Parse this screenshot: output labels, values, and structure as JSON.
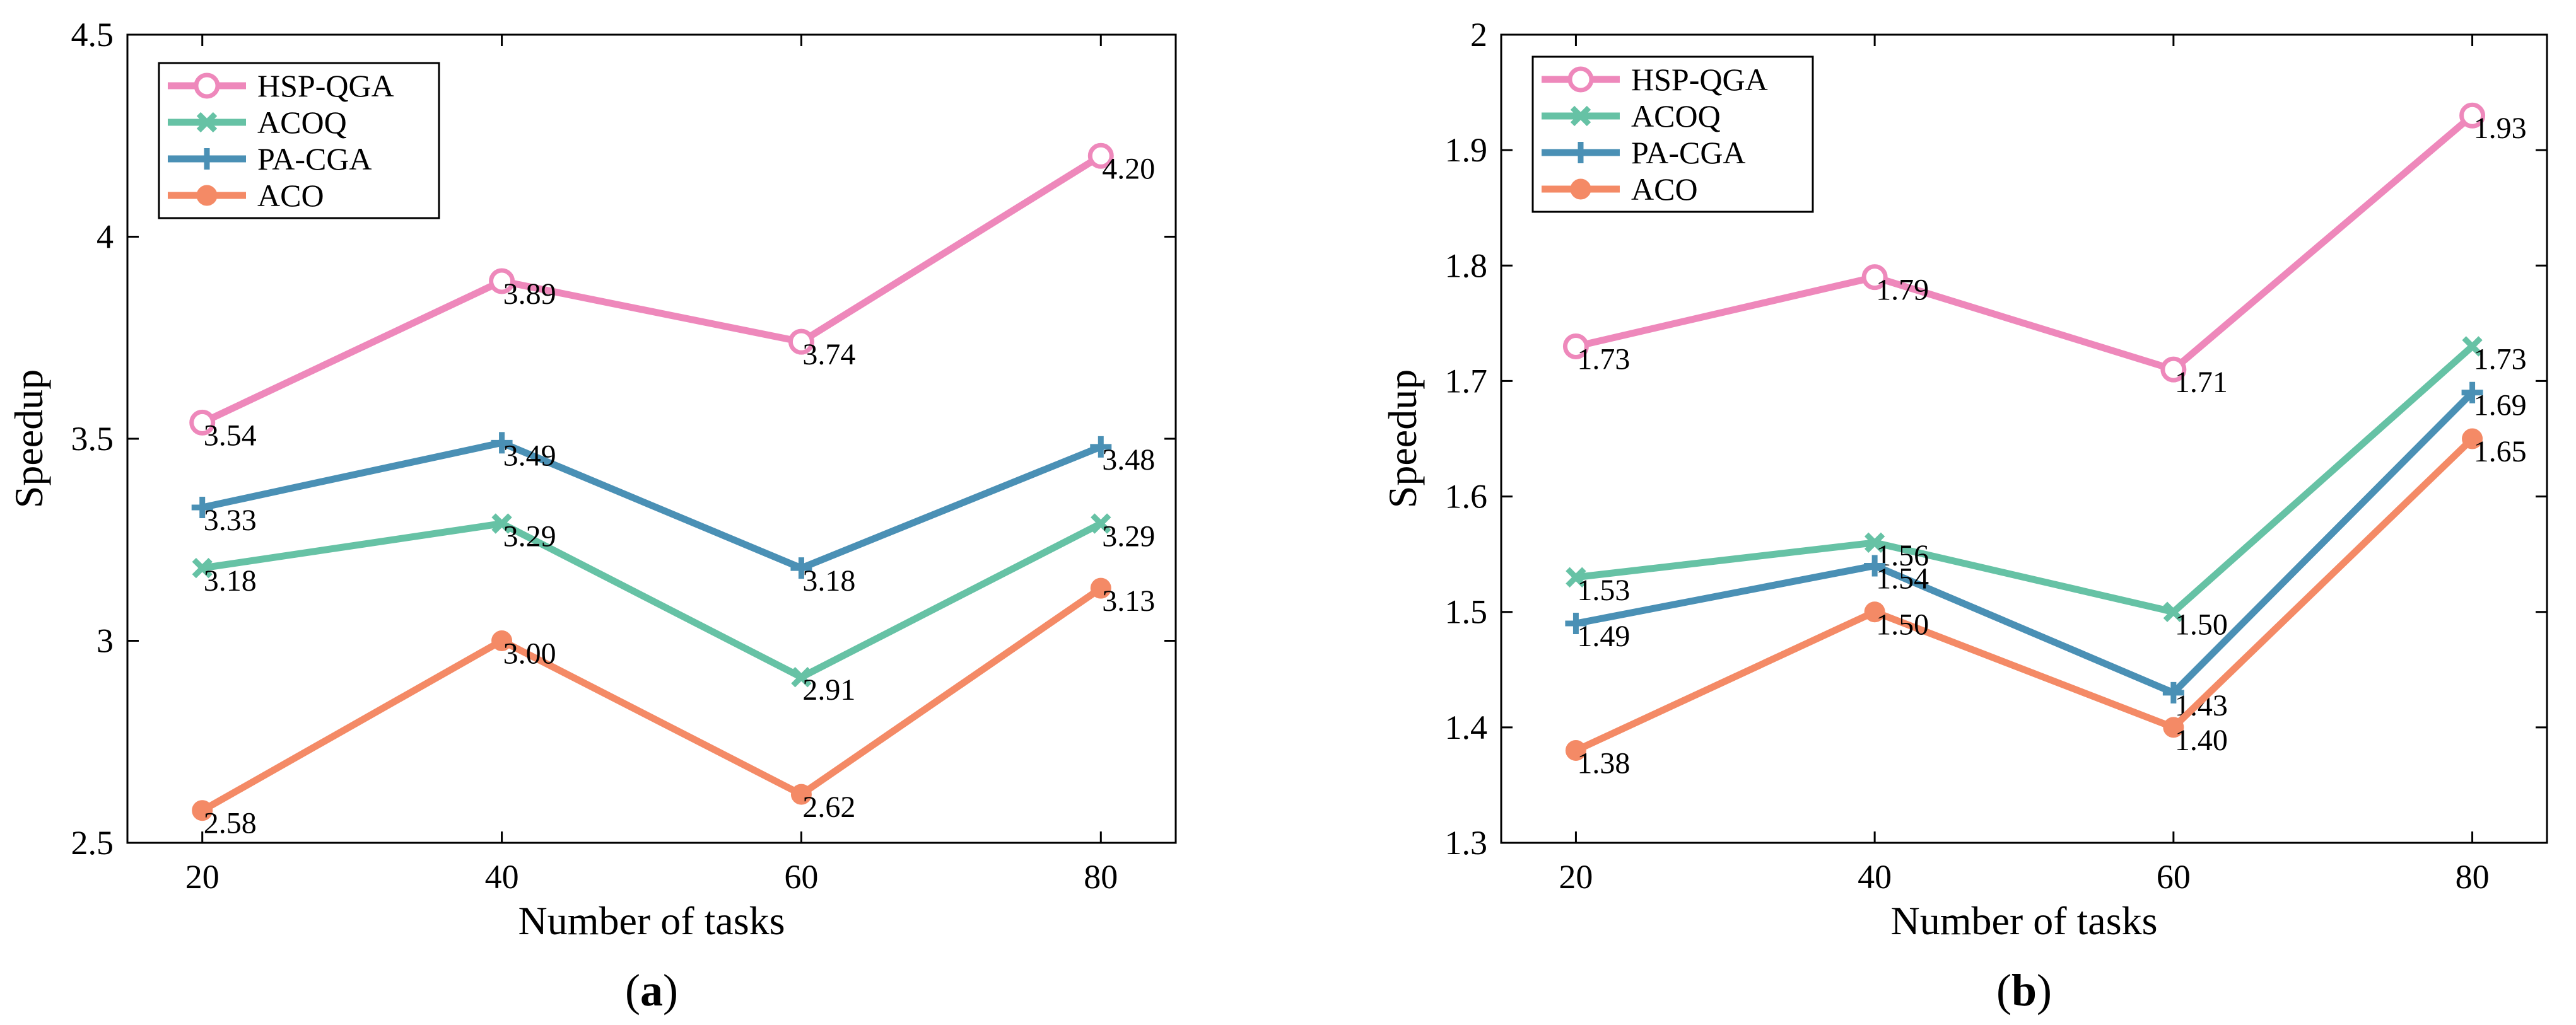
{
  "chart_data": [
    {
      "type": "line",
      "panel_label_open": "(",
      "panel_label": "a",
      "panel_label_close": ")",
      "x": [
        20,
        40,
        60,
        80
      ],
      "xlabel": "Number of tasks",
      "ylabel": "Speedup",
      "xlim": [
        15,
        85
      ],
      "ylim": [
        2.5,
        4.5
      ],
      "xticks": [
        "20",
        "40",
        "60",
        "80"
      ],
      "yticks": [
        "2.5",
        "3",
        "3.5",
        "4",
        "4.5"
      ],
      "grid": false,
      "legend": "top-left",
      "series": [
        {
          "name": "HSP-QGA",
          "values": [
            3.54,
            3.89,
            3.74,
            4.2
          ],
          "labels": [
            "3.54",
            "3.89",
            "3.74",
            "4.20"
          ],
          "color": "#EE88BB",
          "marker": "circle-open"
        },
        {
          "name": "ACOQ",
          "values": [
            3.18,
            3.29,
            2.91,
            3.29
          ],
          "labels": [
            "3.18",
            "3.29",
            "2.91",
            "3.29"
          ],
          "color": "#66C2A5",
          "marker": "x"
        },
        {
          "name": "PA-CGA",
          "values": [
            3.33,
            3.49,
            3.18,
            3.48
          ],
          "labels": [
            "3.33",
            "3.49",
            "3.18",
            "3.48"
          ],
          "color": "#4A90B5",
          "marker": "plus"
        },
        {
          "name": "ACO",
          "values": [
            2.58,
            3.0,
            2.62,
            3.13
          ],
          "labels": [
            "2.58",
            "3.00",
            "2.62",
            "3.13"
          ],
          "color": "#F48A66",
          "marker": "circle-filled"
        }
      ]
    },
    {
      "type": "line",
      "panel_label_open": "(",
      "panel_label": "b",
      "panel_label_close": ")",
      "x": [
        20,
        40,
        60,
        80
      ],
      "xlabel": "Number of tasks",
      "ylabel": "Speedup",
      "xlim": [
        15,
        85
      ],
      "ylim": [
        1.3,
        2.0
      ],
      "xticks": [
        "20",
        "40",
        "60",
        "80"
      ],
      "yticks": [
        "1.3",
        "1.4",
        "1.5",
        "1.6",
        "1.7",
        "1.8",
        "1.9",
        "2"
      ],
      "grid": false,
      "legend": "top-left",
      "series": [
        {
          "name": "HSP-QGA",
          "values": [
            1.73,
            1.79,
            1.71,
            1.93
          ],
          "labels": [
            "1.73",
            "1.79",
            "1.71",
            "1.93"
          ],
          "color": "#EE88BB",
          "marker": "circle-open"
        },
        {
          "name": "ACOQ",
          "values": [
            1.53,
            1.56,
            1.5,
            1.73
          ],
          "labels": [
            "1.53",
            "1.56",
            "1.50",
            "1.73"
          ],
          "color": "#66C2A5",
          "marker": "x"
        },
        {
          "name": "PA-CGA",
          "values": [
            1.49,
            1.54,
            1.43,
            1.69
          ],
          "labels": [
            "1.49",
            "1.54",
            "1.43",
            "1.69"
          ],
          "color": "#4A90B5",
          "marker": "plus"
        },
        {
          "name": "ACO",
          "values": [
            1.38,
            1.5,
            1.4,
            1.65
          ],
          "labels": [
            "1.38",
            "1.50",
            "1.40",
            "1.65"
          ],
          "color": "#F48A66",
          "marker": "circle-filled"
        }
      ]
    }
  ]
}
